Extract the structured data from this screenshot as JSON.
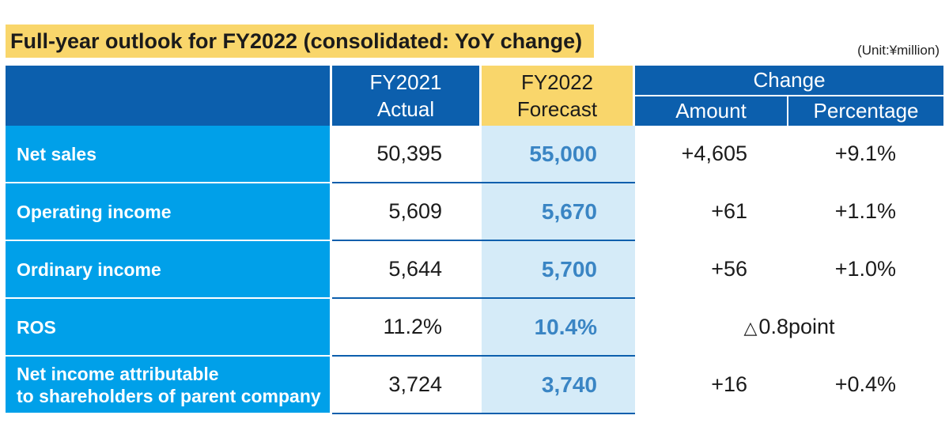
{
  "title": "Full-year outlook for FY2022 (consolidated: YoY change)",
  "unit": "(Unit:¥million)",
  "columns": {
    "actual_line1": "FY2021",
    "actual_line2": "Actual",
    "forecast_line1": "FY2022",
    "forecast_line2": "Forecast",
    "change": "Change",
    "amount": "Amount",
    "percentage": "Percentage"
  },
  "rows": [
    {
      "label": "Net sales",
      "actual": "50,395",
      "forecast": "55,000",
      "amount": "+4,605",
      "percentage": "+9.1%"
    },
    {
      "label": "Operating income",
      "actual": "5,609",
      "forecast": "5,670",
      "amount": "+61",
      "percentage": "+1.1%"
    },
    {
      "label": "Ordinary income",
      "actual": "5,644",
      "forecast": "5,700",
      "amount": "+56",
      "percentage": "+1.0%"
    },
    {
      "label": "ROS",
      "actual": "11.2%",
      "forecast": "10.4%",
      "change_symbol": "△",
      "change_merged": "0.8point"
    },
    {
      "label_line1": "Net income attributable",
      "label_line2": "to shareholders of parent company",
      "actual": "3,724",
      "forecast": "3,740",
      "amount": "+16",
      "percentage": "+0.4%"
    }
  ],
  "colors": {
    "header_blue": "#0c5fad",
    "label_blue": "#00a0e9",
    "highlight_yellow": "#f9d66b",
    "forecast_bg": "#d5ebf8",
    "forecast_text": "#3a85c4"
  }
}
